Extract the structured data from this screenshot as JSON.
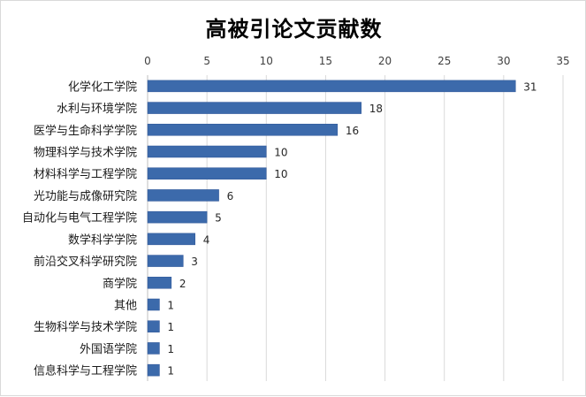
{
  "chart_data": {
    "type": "bar",
    "orientation": "horizontal",
    "title": "高被引论文贡献数",
    "xlabel": "",
    "ylabel": "",
    "xlim": [
      0,
      35
    ],
    "ticks": [
      0,
      5,
      10,
      15,
      20,
      25,
      30,
      35
    ],
    "x_axis_position": "top",
    "grid": true,
    "legend": "none",
    "bar_color": "#3c6aab",
    "categories": [
      "化学化工学院",
      "水利与环境学院",
      "医学与生命科学学院",
      "物理科学与技术学院",
      "材料科学与工程学院",
      "光功能与成像研究院",
      "自动化与电气工程学院",
      "数学科学学院",
      "前沿交叉科学研究院",
      "商学院",
      "其他",
      "生物科学与技术学院",
      "外国语学院",
      "信息科学与工程学院"
    ],
    "values": [
      31,
      18,
      16,
      10,
      10,
      6,
      5,
      4,
      3,
      2,
      1,
      1,
      1,
      1
    ]
  }
}
